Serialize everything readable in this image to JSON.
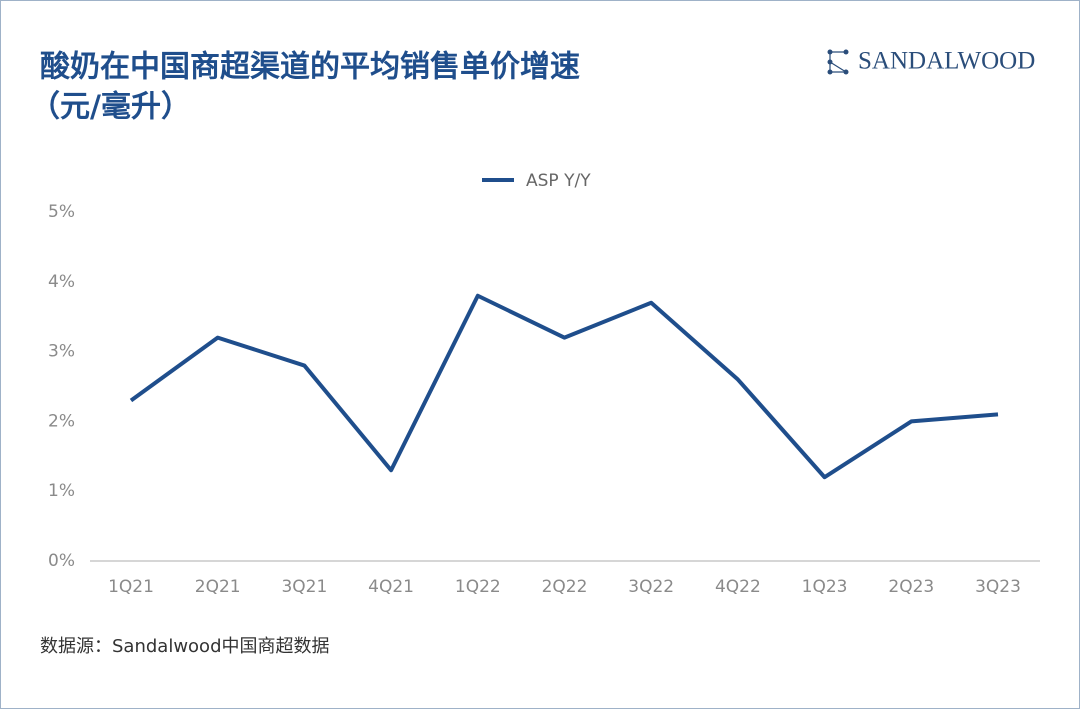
{
  "chart_data": {
    "type": "line",
    "title": "酸奶在中国商超渠道的平均销售单价增速",
    "subtitle": "（元/毫升）",
    "brand": "SANDALWOOD",
    "source": "数据源：Sandalwood中国商超数据",
    "categories": [
      "1Q21",
      "2Q21",
      "3Q21",
      "4Q21",
      "1Q22",
      "2Q22",
      "3Q22",
      "4Q22",
      "1Q23",
      "2Q23",
      "3Q23"
    ],
    "series": [
      {
        "name": "ASP Y/Y",
        "color": "#1f4e8c",
        "values": [
          2.3,
          3.2,
          2.8,
          1.3,
          3.8,
          3.2,
          3.7,
          2.6,
          1.2,
          2.0,
          2.1
        ]
      }
    ],
    "ylim": [
      0,
      5
    ],
    "yticks": [
      {
        "value": 0,
        "label": "0%"
      },
      {
        "value": 1,
        "label": "1%"
      },
      {
        "value": 2,
        "label": "2%"
      },
      {
        "value": 3,
        "label": "3%"
      },
      {
        "value": 4,
        "label": "4%"
      },
      {
        "value": 5,
        "label": "5%"
      }
    ],
    "grid": false,
    "legend": "top"
  }
}
